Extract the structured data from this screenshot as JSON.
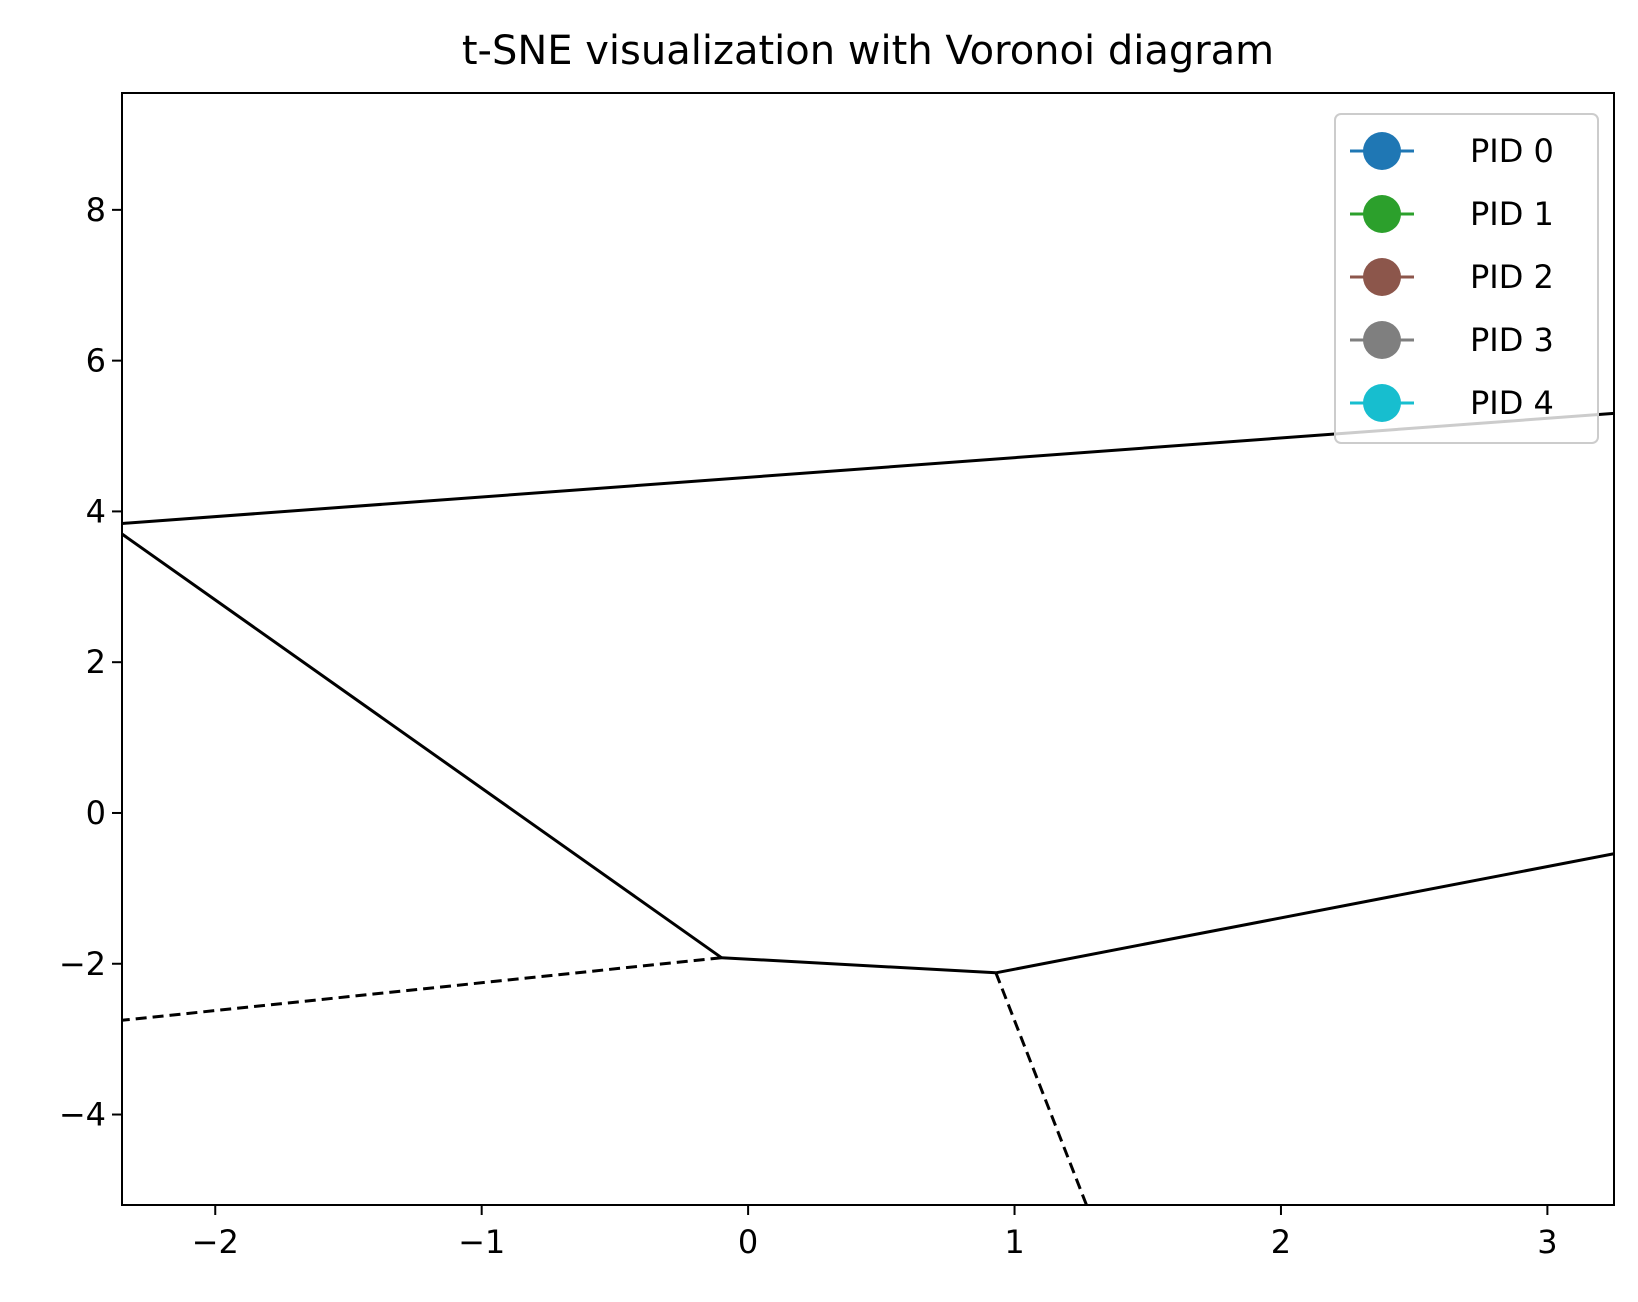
{
  "chart_data": {
    "type": "voronoi",
    "title": "t-SNE visualization with Voronoi diagram",
    "xlabel": "",
    "ylabel": "",
    "xlim": [
      -2.35,
      3.25
    ],
    "ylim": [
      -5.2,
      9.55
    ],
    "x_ticks": [
      {
        "value": -2,
        "label": "−2"
      },
      {
        "value": -1,
        "label": "−1"
      },
      {
        "value": 0,
        "label": "0"
      },
      {
        "value": 1,
        "label": "1"
      },
      {
        "value": 2,
        "label": "2"
      },
      {
        "value": 3,
        "label": "3"
      }
    ],
    "y_ticks": [
      {
        "value": -4,
        "label": "−4"
      },
      {
        "value": -2,
        "label": "−2"
      },
      {
        "value": 0,
        "label": "0"
      },
      {
        "value": 2,
        "label": "2"
      },
      {
        "value": 4,
        "label": "4"
      },
      {
        "value": 6,
        "label": "6"
      },
      {
        "value": 8,
        "label": "8"
      }
    ],
    "grid": false,
    "legend_position": "top-right",
    "series": [
      {
        "name": "PID 0",
        "color": "#1f77b4",
        "points": []
      },
      {
        "name": "PID 1",
        "color": "#2ca02c",
        "points": []
      },
      {
        "name": "PID 2",
        "color": "#8c564b",
        "points": []
      },
      {
        "name": "PID 3",
        "color": "#7f7f7f",
        "points": []
      },
      {
        "name": "PID 4",
        "color": "#17becf",
        "points": []
      }
    ],
    "edges": [
      {
        "style": "solid",
        "points": [
          [
            -2.35,
            3.84
          ],
          [
            3.25,
            5.3
          ]
        ]
      },
      {
        "style": "solid",
        "points": [
          [
            -2.35,
            3.7
          ],
          [
            -0.1,
            -1.92
          ]
        ]
      },
      {
        "style": "solid",
        "points": [
          [
            -0.1,
            -1.92
          ],
          [
            0.93,
            -2.12
          ]
        ]
      },
      {
        "style": "solid",
        "points": [
          [
            0.93,
            -2.12
          ],
          [
            3.25,
            -0.54
          ]
        ]
      },
      {
        "style": "dashed",
        "points": [
          [
            -0.1,
            -1.92
          ],
          [
            -2.35,
            -2.75
          ]
        ]
      },
      {
        "style": "dashed",
        "points": [
          [
            0.93,
            -2.12
          ],
          [
            1.27,
            -5.2
          ]
        ]
      }
    ]
  }
}
